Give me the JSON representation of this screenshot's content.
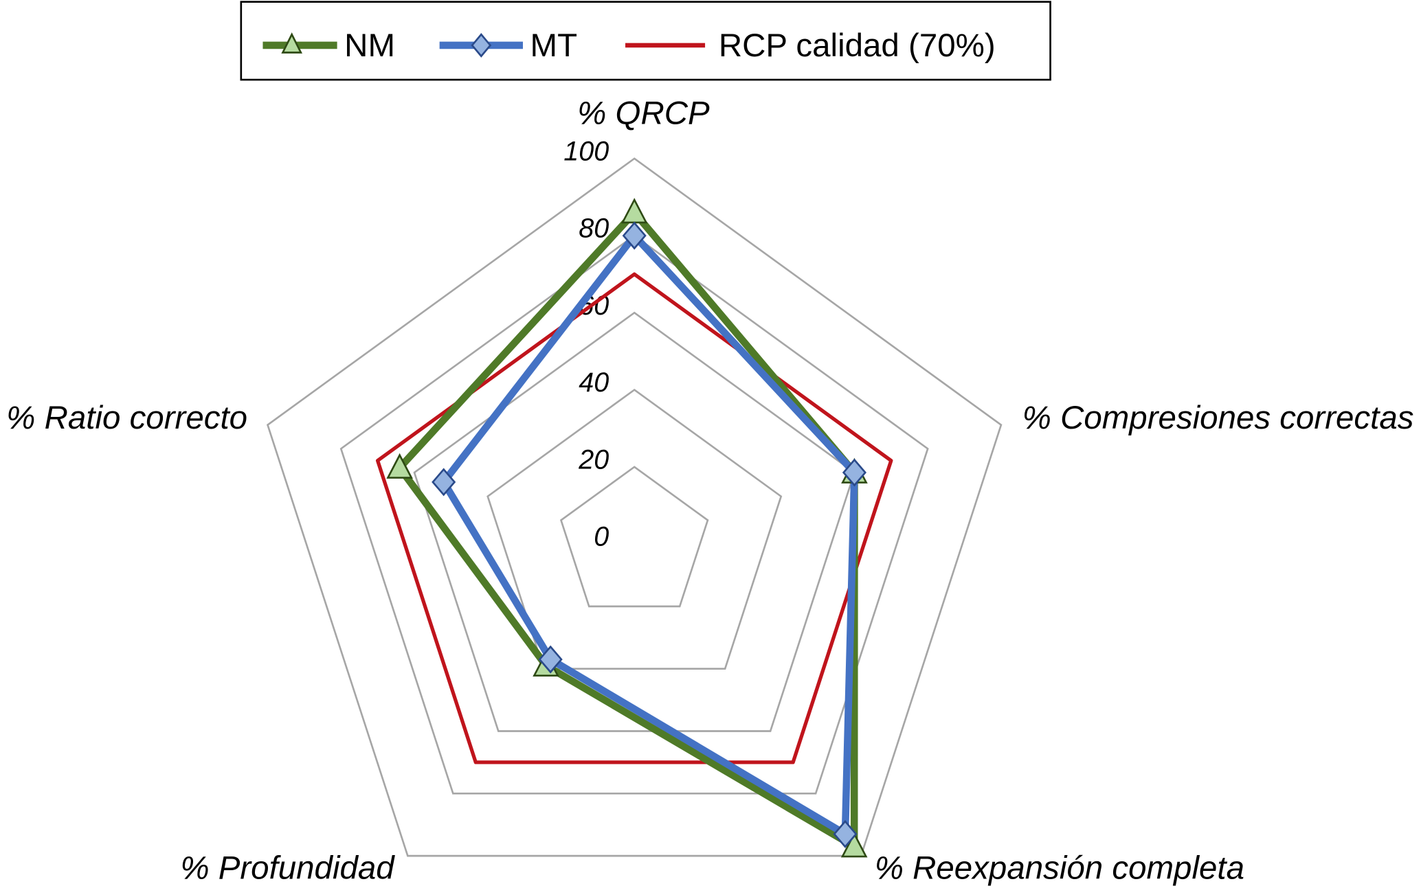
{
  "chart_data": {
    "type": "radar",
    "axes": [
      "% QRCP",
      "% Compresiones correctas",
      "% Reexpansión completa",
      "% Profundidad",
      "% Ratio correcto"
    ],
    "rlim": [
      0,
      100
    ],
    "ticks": [
      "0",
      "20",
      "40",
      "60",
      "80",
      "100"
    ],
    "tick_values": [
      0,
      20,
      40,
      60,
      80,
      100
    ],
    "grid": true,
    "legend_position": "top",
    "series": [
      {
        "name": "NM",
        "values": [
          86,
          60,
          97,
          39,
          64
        ],
        "color": "#4f7a28",
        "marker": "triangle",
        "marker_fill": "#b5dba0"
      },
      {
        "name": "MT",
        "values": [
          80,
          60,
          93,
          37,
          52
        ],
        "color": "#4472c4",
        "marker": "diamond",
        "marker_fill": "#95b3e0"
      },
      {
        "name": "RCP calidad (70%)",
        "values": [
          70,
          70,
          70,
          70,
          70
        ],
        "color": "#c0141c",
        "marker": "none"
      }
    ]
  }
}
